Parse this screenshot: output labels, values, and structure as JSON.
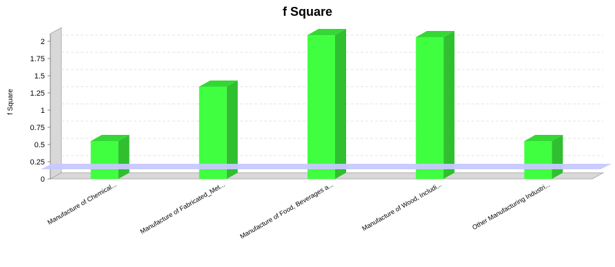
{
  "chart_data": {
    "type": "bar",
    "title": "f Square",
    "xlabel": "",
    "ylabel": "f Square",
    "categories": [
      "Manufacture of Chemical...",
      "Manufacture of Fabricated_Met...",
      "Manufacture of Food, Beverages a...",
      "Manufacture of Wood, Includi...",
      "Other Manufacturing Industri..."
    ],
    "values": [
      0.55,
      1.34,
      2.09,
      2.06,
      0.55
    ],
    "ylim": [
      0,
      2.2
    ],
    "yticks": [
      "0",
      "0.25",
      "0.5",
      "0.75",
      "1",
      "1.25",
      "1.5",
      "1.75",
      "2"
    ],
    "threshold": 0.18,
    "grid": true,
    "three_d": true,
    "colors": {
      "bar_front": "#40ff40",
      "bar_side": "#2fbf2f",
      "bar_top": "#34d834",
      "threshold_band": "#c7c9ff",
      "grid": "#e3e3e3",
      "wall": "#d8d8d8"
    }
  }
}
